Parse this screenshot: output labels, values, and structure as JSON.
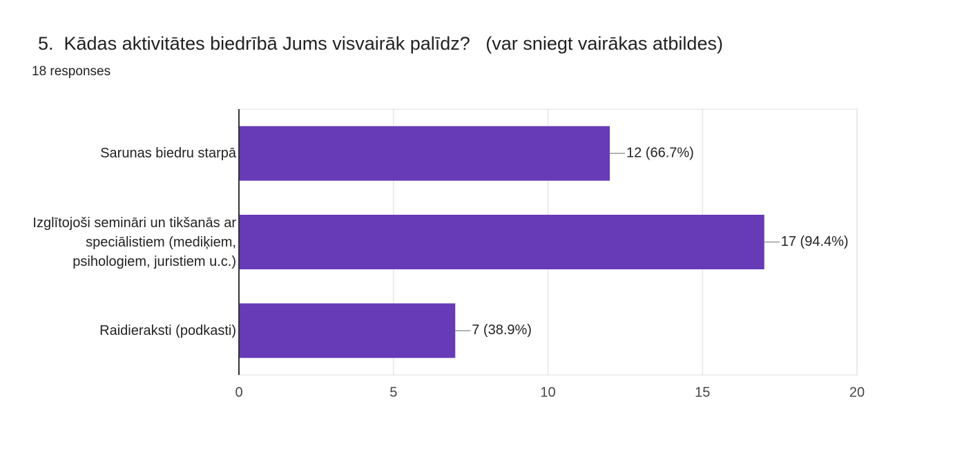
{
  "chart_data": {
    "type": "bar",
    "orientation": "horizontal",
    "title": "5.  Kādas aktivitātes biedrībā Jums visvairāk palīdz?   (var sniegt vairākas atbildes)",
    "subtitle": "18 responses",
    "categories": [
      "Sarunas biedru starpā",
      "Izglītojoši semināri un tikšanās ar speciālistiem (mediķiem, psihologiem, juristiem u.c.)",
      "Raidieraksti (podkasti)"
    ],
    "values": [
      12,
      17,
      7
    ],
    "value_labels": [
      "12 (66.7%)",
      "17 (94.4%)",
      "7 (38.9%)"
    ],
    "color": "#673ab7",
    "xlim": [
      0,
      20
    ],
    "xticks": [
      0,
      5,
      10,
      15,
      20
    ],
    "grid": true
  }
}
